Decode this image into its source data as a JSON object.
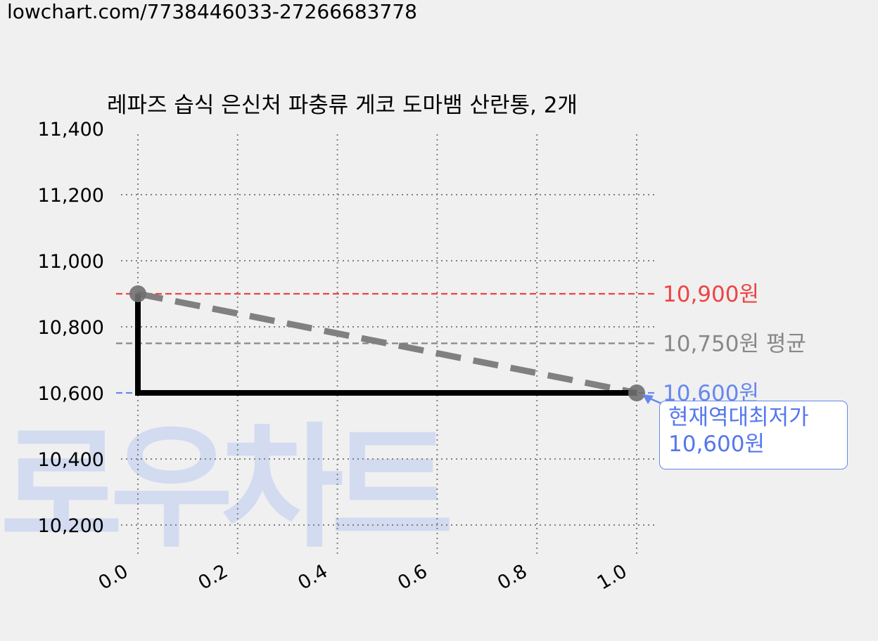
{
  "url_text": "lowchart.com/7738446033-27266683778",
  "watermark": "로우차트",
  "colors": {
    "max": "#ee4444",
    "avg": "#888888",
    "min": "#6688ee",
    "step": "#000000",
    "trend": "#808080",
    "grid": "#808080",
    "watermark": "#c8d4f0"
  },
  "chart_data": {
    "type": "line",
    "title": "레파즈 습식 은신처 파충류 게코 도마뱀 산란통, 2개",
    "xlabel": "",
    "ylabel": "",
    "xlim": [
      0.0,
      1.0
    ],
    "ylim": [
      10100,
      11400
    ],
    "x_ticks": [
      "0.0",
      "0.2",
      "0.4",
      "0.6",
      "0.8",
      "1.0"
    ],
    "y_ticks": [
      "10,200",
      "10,400",
      "10,600",
      "10,800",
      "11,000",
      "11,200",
      "11,400"
    ],
    "grid": true,
    "series": [
      {
        "x": [
          0.0,
          1.0
        ],
        "values": [
          10900,
          10600
        ]
      }
    ],
    "reference_lines": [
      {
        "value": 10900,
        "label": "10,900원"
      },
      {
        "value": 10750,
        "label": "10,750원 평균"
      },
      {
        "value": 10600,
        "label": "10,600원"
      }
    ],
    "annotation": {
      "line1": "현재역대최저가",
      "line2": "10,600원",
      "x": 1.0,
      "y": 10600
    }
  }
}
